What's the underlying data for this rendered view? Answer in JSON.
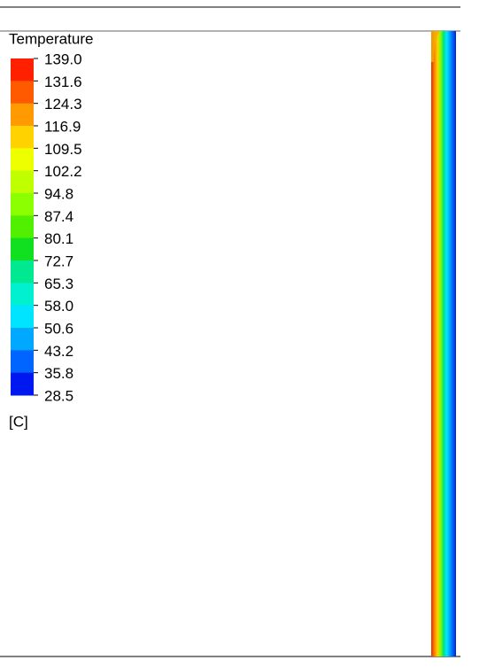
{
  "legend": {
    "title": "Temperature",
    "labels": [
      "139.0",
      "131.6",
      "124.3",
      "116.9",
      "109.5",
      "102.2",
      "94.8",
      "87.4",
      "80.1",
      "72.7",
      "65.3",
      "58.0",
      "50.6",
      "43.2",
      "35.8",
      "28.5"
    ],
    "colors": [
      "#ff2000",
      "#ff5a00",
      "#ff9a00",
      "#ffd200",
      "#eeff00",
      "#c0ff00",
      "#8cff00",
      "#50f000",
      "#10e020",
      "#00e890",
      "#00f0d0",
      "#00e4ff",
      "#00a8ff",
      "#0064ff",
      "#0018f0"
    ],
    "unit": "[C]"
  }
}
